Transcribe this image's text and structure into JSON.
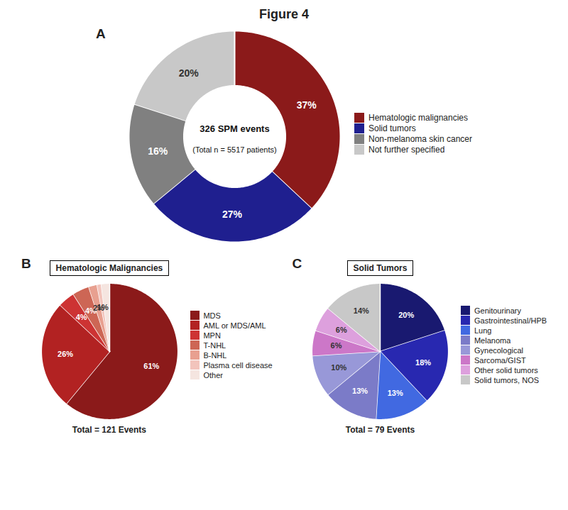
{
  "chart_data": [
    {
      "type": "donut",
      "title": "Figure 4",
      "panel_label": "A",
      "categories": [
        "Hematologic malignancies",
        "Solid tumors",
        "Non-melanoma skin cancer",
        "Not further specified"
      ],
      "values": [
        37,
        27,
        16,
        20
      ],
      "value_labels": [
        "37%",
        "27%",
        "16%",
        "20%"
      ],
      "colors": [
        "#8B1A1A",
        "#1F1F8F",
        "#808080",
        "#C8C8C8"
      ],
      "data_labels": true,
      "annotations": [
        "326 SPM events",
        "(Total n = 5517 patients)"
      ],
      "legend": "right"
    },
    {
      "type": "pie",
      "title": "Hematologic Malignancies",
      "panel_label": "B",
      "categories": [
        "MDS",
        "AML or MDS/AML",
        "MPN",
        "T-NHL",
        "B-NHL",
        "Plasma cell disease",
        "Other"
      ],
      "values": [
        61,
        26,
        4,
        4,
        2,
        1,
        2
      ],
      "value_labels": [
        "61%",
        "26%",
        "4%",
        "4%",
        "2%",
        "1%",
        null
      ],
      "colors": [
        "#8B1A1A",
        "#B22222",
        "#CD3333",
        "#CD6655",
        "#E8A090",
        "#F2C4BC",
        "#F5E5E0"
      ],
      "data_labels": true,
      "annotations": [
        "Total = 121 Events"
      ],
      "legend": "right"
    },
    {
      "type": "pie",
      "title": "Solid Tumors",
      "panel_label": "C",
      "categories": [
        "Genitourinary",
        "Gastrointestinal/HPB",
        "Lung",
        "Melanoma",
        "Gynecological",
        "Sarcoma/GIST",
        "Other solid tumors",
        "Solid tumors, NOS"
      ],
      "values": [
        20,
        18,
        13,
        13,
        10,
        6,
        6,
        14
      ],
      "value_labels": [
        "20%",
        "18%",
        "13%",
        "13%",
        "10%",
        "6%",
        "6%",
        "14%"
      ],
      "colors": [
        "#191970",
        "#2828B0",
        "#4169E1",
        "#7B7BC8",
        "#9898D8",
        "#CC77C8",
        "#DDA0DD",
        "#C8C8C8"
      ],
      "data_labels": true,
      "annotations": [
        "Total = 79 Events"
      ],
      "legend": "right"
    }
  ]
}
